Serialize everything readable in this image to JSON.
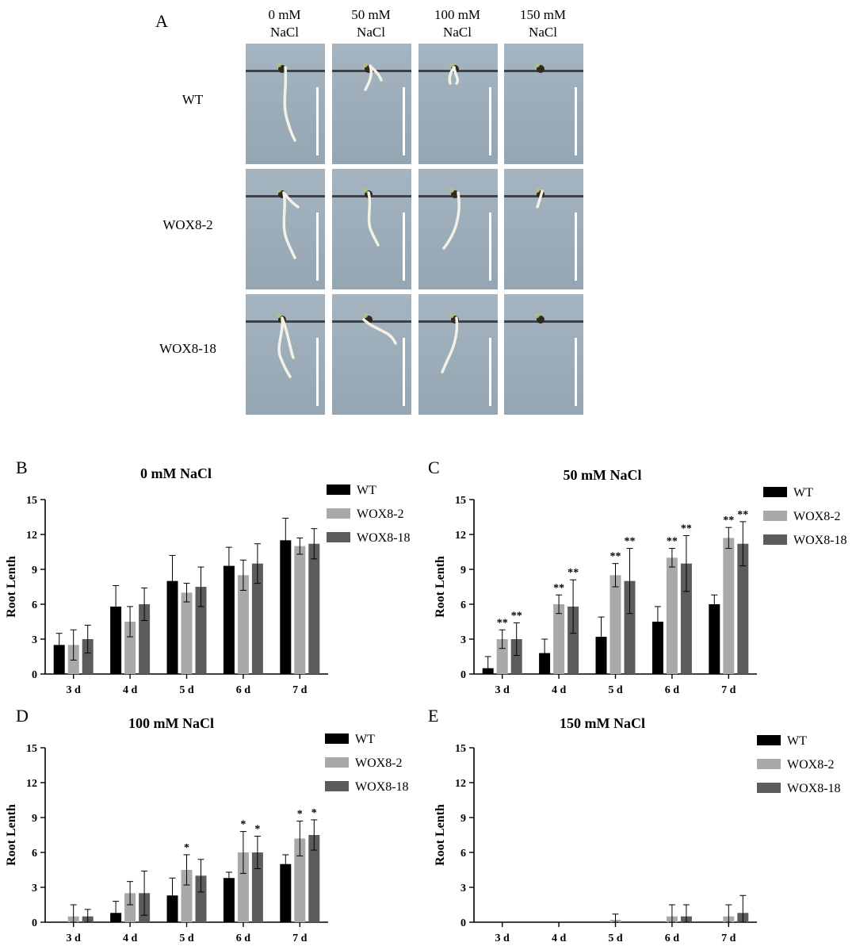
{
  "panel_a": {
    "letter": "A",
    "columns": [
      {
        "line1": "0 mM",
        "line2": "NaCl"
      },
      {
        "line1": "50 mM",
        "line2": "NaCl"
      },
      {
        "line1": "100 mM",
        "line2": "NaCl"
      },
      {
        "line1": "150 mM",
        "line2": "NaCl"
      }
    ],
    "rows": [
      "WT",
      "WOX8-2",
      "WOX8-18"
    ]
  },
  "colors": {
    "wt": "#000000",
    "wox8_2": "#a9a9a9",
    "wox8_18": "#5c5c5c",
    "photo_bg": "#9fb0bd",
    "photo_bg_dark": "#8d9eab",
    "root": "#f3f1e6"
  },
  "chart_data": [
    {
      "panel": "B",
      "type": "bar",
      "title": "0 mM NaCl",
      "xlabel": "",
      "ylabel": "Root Lenth",
      "ylim": [
        0,
        15
      ],
      "yticks": [
        "0",
        "3",
        "6",
        "9",
        "12",
        "15"
      ],
      "categories": [
        "3 d",
        "4 d",
        "5 d",
        "6 d",
        "7 d"
      ],
      "legend_position": "top-right",
      "series": [
        {
          "name": "WT",
          "values": [
            2.5,
            5.8,
            8.0,
            9.3,
            11.5
          ],
          "errors": [
            1.0,
            1.8,
            2.2,
            1.6,
            1.9
          ],
          "marks": [
            "",
            "",
            "",
            "",
            ""
          ]
        },
        {
          "name": "WOX8-2",
          "values": [
            2.5,
            4.5,
            7.0,
            8.5,
            11.0
          ],
          "errors": [
            1.3,
            1.3,
            0.8,
            1.3,
            0.7
          ],
          "marks": [
            "",
            "",
            "",
            "",
            ""
          ]
        },
        {
          "name": "WOX8-18",
          "values": [
            3.0,
            6.0,
            7.5,
            9.5,
            11.2
          ],
          "errors": [
            1.2,
            1.4,
            1.7,
            1.7,
            1.3
          ],
          "marks": [
            "",
            "",
            "",
            "",
            ""
          ]
        }
      ]
    },
    {
      "panel": "C",
      "type": "bar",
      "title": "50 mM NaCl",
      "xlabel": "",
      "ylabel": "Root Lenth",
      "ylim": [
        0,
        15
      ],
      "yticks": [
        "0",
        "3",
        "6",
        "9",
        "12",
        "15"
      ],
      "categories": [
        "3 d",
        "4 d",
        "5 d",
        "6 d",
        "7 d"
      ],
      "legend_position": "top-right",
      "series": [
        {
          "name": "WT",
          "values": [
            0.5,
            1.8,
            3.2,
            4.5,
            6.0
          ],
          "errors": [
            1.0,
            1.2,
            1.7,
            1.3,
            0.8
          ],
          "marks": [
            "",
            "",
            "",
            "",
            ""
          ]
        },
        {
          "name": "WOX8-2",
          "values": [
            3.0,
            6.0,
            8.5,
            10.0,
            11.7
          ],
          "errors": [
            0.8,
            0.8,
            1.0,
            0.8,
            0.9
          ],
          "marks": [
            "**",
            "**",
            "**",
            "**",
            "**"
          ]
        },
        {
          "name": "WOX8-18",
          "values": [
            3.0,
            5.8,
            8.0,
            9.5,
            11.2
          ],
          "errors": [
            1.4,
            2.3,
            2.8,
            2.4,
            1.9
          ],
          "marks": [
            "**",
            "**",
            "**",
            "**",
            "**"
          ]
        }
      ]
    },
    {
      "panel": "D",
      "type": "bar",
      "title": "100 mM NaCl",
      "xlabel": "",
      "ylabel": "Root Lenth",
      "ylim": [
        0,
        15
      ],
      "yticks": [
        "0",
        "3",
        "6",
        "9",
        "12",
        "15"
      ],
      "categories": [
        "3 d",
        "4 d",
        "5 d",
        "6 d",
        "7 d"
      ],
      "legend_position": "top-right",
      "series": [
        {
          "name": "WT",
          "values": [
            0.0,
            0.8,
            2.3,
            3.8,
            5.0
          ],
          "errors": [
            0.0,
            1.0,
            1.5,
            0.5,
            0.8
          ],
          "marks": [
            "",
            "",
            "",
            "",
            ""
          ]
        },
        {
          "name": "WOX8-2",
          "values": [
            0.5,
            2.5,
            4.5,
            6.0,
            7.2
          ],
          "errors": [
            1.0,
            1.0,
            1.3,
            1.8,
            1.5
          ],
          "marks": [
            "",
            "",
            "*",
            "*",
            "*"
          ]
        },
        {
          "name": "WOX8-18",
          "values": [
            0.5,
            2.5,
            4.0,
            6.0,
            7.5
          ],
          "errors": [
            0.6,
            1.9,
            1.4,
            1.4,
            1.3
          ],
          "marks": [
            "",
            "",
            "",
            "*",
            "*"
          ]
        }
      ]
    },
    {
      "panel": "E",
      "type": "bar",
      "title": "150 mM NaCl",
      "xlabel": "",
      "ylabel": "Root Lenth",
      "ylim": [
        0,
        15
      ],
      "yticks": [
        "0",
        "3",
        "6",
        "9",
        "12",
        "15"
      ],
      "categories": [
        "3 d",
        "4 d",
        "5 d",
        "6 d",
        "7 d"
      ],
      "legend_position": "top-right",
      "series": [
        {
          "name": "WT",
          "values": [
            0,
            0,
            0,
            0,
            0
          ],
          "errors": [
            0,
            0,
            0,
            0,
            0
          ],
          "marks": [
            "",
            "",
            "",
            "",
            ""
          ]
        },
        {
          "name": "WOX8-2",
          "values": [
            0,
            0,
            0.2,
            0.5,
            0.5
          ],
          "errors": [
            0,
            0,
            0.5,
            1.0,
            1.0
          ],
          "marks": [
            "",
            "",
            "",
            "",
            ""
          ]
        },
        {
          "name": "WOX8-18",
          "values": [
            0,
            0,
            0,
            0.5,
            0.8
          ],
          "errors": [
            0,
            0,
            0,
            1.0,
            1.5
          ],
          "marks": [
            "",
            "",
            "",
            "",
            ""
          ]
        }
      ]
    }
  ]
}
